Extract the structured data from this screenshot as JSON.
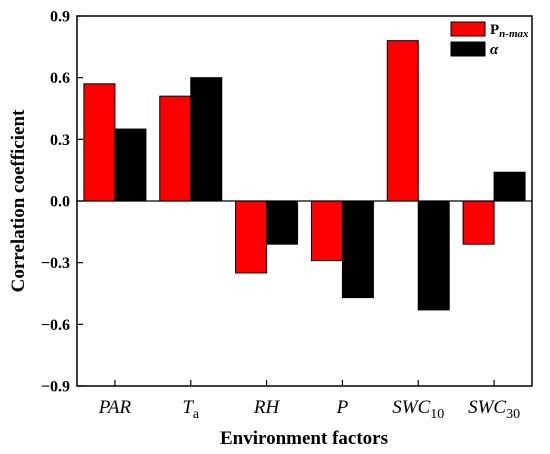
{
  "chart_data": {
    "type": "bar",
    "xlabel": "Environment factors",
    "ylabel": "Correlation coefficient",
    "ylim": [
      -0.9,
      0.9
    ],
    "yticks": [
      0.9,
      0.6,
      0.3,
      0.0,
      -0.3,
      -0.6,
      -0.9
    ],
    "ytick_labels": [
      "0.9",
      "0.6",
      "0.3",
      "0.0",
      "−0.3",
      "−0.6",
      "−0.9"
    ],
    "categories": [
      {
        "base": "PAR",
        "sub": ""
      },
      {
        "base": "T",
        "sub": "a"
      },
      {
        "base": "RH",
        "sub": ""
      },
      {
        "base": "P",
        "sub": ""
      },
      {
        "base": "SWC",
        "sub": "10"
      },
      {
        "base": "SWC",
        "sub": "30"
      }
    ],
    "series": [
      {
        "name_base": "P",
        "name_sub": "n-max",
        "color": "#ff0000",
        "values": [
          0.57,
          0.51,
          -0.35,
          -0.29,
          0.78,
          -0.21
        ]
      },
      {
        "name_base": "α",
        "name_sub": "",
        "color": "#000000",
        "values": [
          0.35,
          0.6,
          -0.21,
          -0.47,
          -0.53,
          0.14
        ]
      }
    ],
    "legend_position": "top-right",
    "grid": false
  }
}
